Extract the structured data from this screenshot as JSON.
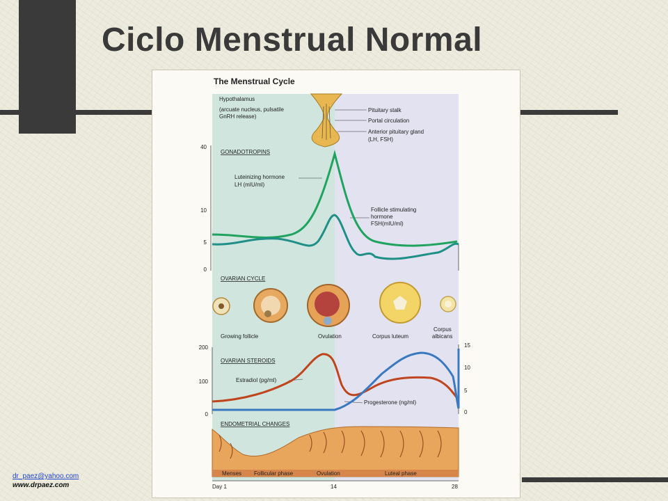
{
  "slide": {
    "title": "Ciclo Menstrual Normal",
    "footer_email": "dr_paez@yahoo.com",
    "footer_web": "www.drpaez.com"
  },
  "figure": {
    "heading": "The Menstrual Cycle",
    "hypothalamus": [
      "Hypothalamus",
      "(arcuate nucleus, pulsatile",
      "GnRH release)"
    ],
    "pituitary_labels": [
      "Pituitary stalk",
      "Portal circulation",
      "Anterior pituitary gland",
      "(LH, FSH)"
    ],
    "gonadotropins": {
      "header": "GONADOTROPINS",
      "lh_label": [
        "Luteinizing hormone",
        "LH (mIU/ml)"
      ],
      "fsh_label": [
        "Follicle stimulating",
        "hormone",
        "FSH(mIU/ml)"
      ],
      "y_ticks": [
        "40",
        "10",
        "5",
        "0"
      ]
    },
    "ovarian_cycle": {
      "header": "OVARIAN CYCLE",
      "labels": [
        "Growing follicle",
        "Ovulation",
        "Corpus luteum",
        "Corpus",
        "albicans"
      ]
    },
    "steroids": {
      "header": "OVARIAN STEROIDS",
      "estradiol_label": "Estradiol (pg/ml)",
      "progesterone_label": "Progesterone (ng/ml)",
      "left_ticks": [
        "200",
        "100",
        "0"
      ],
      "right_ticks": [
        "15",
        "10",
        "5",
        "0"
      ]
    },
    "endometrium": {
      "header": "ENDOMETRIAL CHANGES",
      "phases": [
        "Menses",
        "Follicular phase",
        "Ovulation",
        "Luteal phase"
      ]
    },
    "x_axis": [
      "Day 1",
      "14",
      "28"
    ],
    "colors": {
      "lh": "#1fa35f",
      "fsh": "#1f8f87",
      "estradiol": "#c0441d",
      "progesterone": "#3a78c0",
      "follicular_bg": "#cfe5de",
      "luteal_bg": "#e2e2f0"
    }
  }
}
